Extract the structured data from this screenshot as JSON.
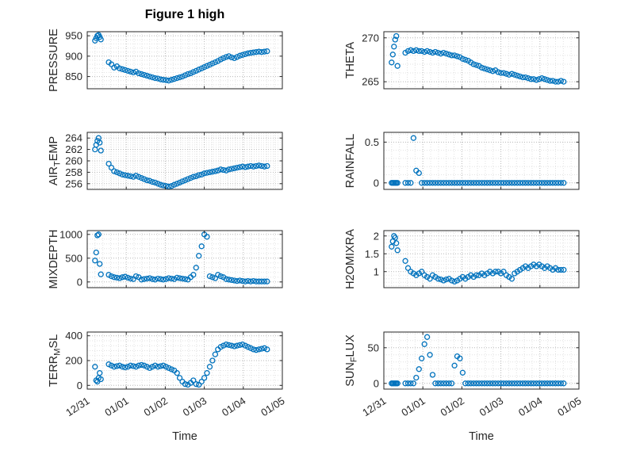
{
  "figure": {
    "title": "Figure 1 high",
    "xlabel": "Time",
    "xtick_labels": [
      "12/31",
      "01/01",
      "01/02",
      "01/03",
      "01/04",
      "01/05"
    ],
    "xticks_days": [
      0,
      1,
      2,
      3,
      4,
      5
    ],
    "xlim": [
      0,
      5
    ],
    "marker_color": "#0072BD",
    "axis_color": "#262626",
    "grid_color": "#b8b8b8",
    "minor_grid_color": "#e2e2e2",
    "x_days": [
      0.2,
      0.23,
      0.26,
      0.29,
      0.32,
      0.35,
      0.55,
      0.62,
      0.69,
      0.76,
      0.83,
      0.9,
      0.97,
      1.04,
      1.11,
      1.18,
      1.25,
      1.32,
      1.39,
      1.46,
      1.53,
      1.6,
      1.67,
      1.74,
      1.81,
      1.88,
      1.95,
      2.02,
      2.09,
      2.16,
      2.23,
      2.3,
      2.37,
      2.44,
      2.51,
      2.58,
      2.65,
      2.72,
      2.79,
      2.86,
      2.93,
      3.0,
      3.07,
      3.14,
      3.21,
      3.28,
      3.35,
      3.42,
      3.49,
      3.56,
      3.63,
      3.7,
      3.77,
      3.84,
      3.91,
      3.98,
      4.05,
      4.12,
      4.19,
      4.26,
      4.33,
      4.4,
      4.47,
      4.54,
      4.61
    ]
  },
  "chart_data": [
    {
      "type": "scatter",
      "name": "PRESSURE",
      "ylabel": "PRESSURE",
      "ylabel_parts": [
        [
          "PRESSURE",
          false
        ]
      ],
      "yticks": [
        850,
        900,
        950
      ],
      "ylim": [
        820,
        960
      ],
      "y": [
        938,
        944,
        950,
        952,
        947,
        941,
        885,
        880,
        872,
        875,
        870,
        868,
        866,
        864,
        862,
        860,
        862,
        858,
        856,
        854,
        852,
        850,
        848,
        846,
        845,
        843,
        842,
        841,
        840,
        842,
        844,
        846,
        848,
        850,
        853,
        856,
        858,
        861,
        864,
        867,
        870,
        873,
        876,
        879,
        882,
        885,
        888,
        892,
        895,
        898,
        900,
        897,
        895,
        898,
        901,
        903,
        905,
        907,
        908,
        909,
        910,
        911,
        910,
        911,
        912
      ]
    },
    {
      "type": "scatter",
      "name": "THETA",
      "ylabel": "THETA",
      "ylabel_parts": [
        [
          "THETA",
          false
        ]
      ],
      "yticks": [
        265,
        270
      ],
      "ylim": [
        264.2,
        270.7
      ],
      "y": [
        267.2,
        268.1,
        269.0,
        269.8,
        270.2,
        266.8,
        268.3,
        268.5,
        268.6,
        268.5,
        268.6,
        268.5,
        268.5,
        268.4,
        268.5,
        268.4,
        268.3,
        268.4,
        268.3,
        268.2,
        268.3,
        268.2,
        268.1,
        268.0,
        268.0,
        267.9,
        267.8,
        267.6,
        267.5,
        267.4,
        267.2,
        267.0,
        266.9,
        266.8,
        266.6,
        266.5,
        266.4,
        266.3,
        266.2,
        266.3,
        266.1,
        266.0,
        266.0,
        265.9,
        265.8,
        265.9,
        265.8,
        265.7,
        265.6,
        265.5,
        265.5,
        265.4,
        265.3,
        265.3,
        265.2,
        265.3,
        265.4,
        265.3,
        265.2,
        265.1,
        265.1,
        265.0,
        265.0,
        265.1,
        265.0
      ]
    },
    {
      "type": "scatter",
      "name": "AIR_TEMP",
      "ylabel": "AIR_TEMP",
      "ylabel_parts": [
        [
          "AIR",
          false
        ],
        [
          "T",
          true
        ],
        [
          "EMP",
          false
        ]
      ],
      "yticks": [
        256,
        258,
        260,
        262,
        264
      ],
      "ylim": [
        255,
        265
      ],
      "y": [
        262.0,
        262.8,
        263.5,
        264.0,
        263.2,
        261.8,
        259.5,
        258.8,
        258.2,
        258.0,
        257.8,
        257.6,
        257.5,
        257.4,
        257.3,
        257.2,
        257.4,
        257.2,
        257.0,
        256.8,
        256.6,
        256.5,
        256.3,
        256.2,
        256.0,
        255.8,
        255.7,
        255.6,
        255.5,
        255.6,
        255.8,
        256.0,
        256.2,
        256.4,
        256.6,
        256.8,
        257.0,
        257.2,
        257.3,
        257.5,
        257.6,
        257.8,
        257.9,
        258.0,
        258.1,
        258.2,
        258.3,
        258.5,
        258.4,
        258.3,
        258.5,
        258.6,
        258.7,
        258.8,
        258.9,
        259.0,
        258.9,
        259.0,
        259.1,
        259.0,
        259.1,
        259.2,
        259.1,
        259.0,
        259.1
      ]
    },
    {
      "type": "scatter",
      "name": "RAINFALL",
      "ylabel": "RAINFALL",
      "ylabel_parts": [
        [
          "RAINFALL",
          false
        ]
      ],
      "yticks": [
        0,
        0.5
      ],
      "ylim": [
        -0.08,
        0.62
      ],
      "y": [
        0,
        0,
        0,
        0,
        0,
        0,
        0,
        0,
        0,
        0.55,
        0.15,
        0.12,
        0,
        0,
        0,
        0,
        0,
        0,
        0,
        0,
        0,
        0,
        0,
        0,
        0,
        0,
        0,
        0,
        0,
        0,
        0,
        0,
        0,
        0,
        0,
        0,
        0,
        0,
        0,
        0,
        0,
        0,
        0,
        0,
        0,
        0,
        0,
        0,
        0,
        0,
        0,
        0,
        0,
        0,
        0,
        0,
        0,
        0,
        0,
        0,
        0,
        0,
        0,
        0,
        0
      ]
    },
    {
      "type": "scatter",
      "name": "MIXDEPTH",
      "ylabel": "MIXDEPTH",
      "ylabel_parts": [
        [
          "MIXDEPTH",
          false
        ]
      ],
      "yticks": [
        0,
        500,
        1000
      ],
      "ylim": [
        -120,
        1080
      ],
      "y": [
        450,
        620,
        980,
        1000,
        380,
        160,
        150,
        120,
        100,
        90,
        80,
        100,
        110,
        90,
        70,
        60,
        120,
        100,
        50,
        60,
        70,
        80,
        60,
        50,
        70,
        60,
        50,
        60,
        80,
        70,
        60,
        90,
        80,
        70,
        60,
        50,
        100,
        150,
        300,
        550,
        750,
        1000,
        950,
        120,
        100,
        80,
        150,
        120,
        100,
        60,
        50,
        40,
        30,
        20,
        30,
        20,
        10,
        20,
        10,
        20,
        10,
        10,
        10,
        10,
        10
      ]
    },
    {
      "type": "scatter",
      "name": "H2OMIXRA",
      "ylabel": "H2OMIXRA",
      "ylabel_parts": [
        [
          "H2OMIXRA",
          false
        ]
      ],
      "yticks": [
        1,
        1.5,
        2
      ],
      "ylim": [
        0.55,
        2.15
      ],
      "y": [
        1.7,
        1.85,
        2.0,
        1.95,
        1.8,
        1.6,
        1.3,
        1.1,
        1.0,
        0.95,
        0.9,
        0.95,
        1.0,
        0.9,
        0.85,
        0.8,
        0.9,
        0.85,
        0.8,
        0.78,
        0.75,
        0.78,
        0.8,
        0.75,
        0.72,
        0.75,
        0.8,
        0.85,
        0.8,
        0.85,
        0.9,
        0.85,
        0.9,
        0.9,
        0.95,
        0.9,
        0.95,
        1.0,
        0.95,
        1.0,
        1.0,
        0.95,
        1.0,
        0.9,
        0.85,
        0.8,
        0.95,
        1.0,
        1.05,
        1.1,
        1.15,
        1.1,
        1.15,
        1.2,
        1.15,
        1.2,
        1.15,
        1.1,
        1.15,
        1.1,
        1.05,
        1.1,
        1.05,
        1.05,
        1.05
      ]
    },
    {
      "type": "scatter",
      "name": "TERR_MSL",
      "ylabel": "TERR_MSL",
      "ylabel_parts": [
        [
          "TERR",
          false
        ],
        [
          "M",
          true
        ],
        [
          "SL",
          false
        ]
      ],
      "yticks": [
        0,
        200,
        400
      ],
      "ylim": [
        -30,
        430
      ],
      "y": [
        150,
        40,
        30,
        60,
        100,
        50,
        170,
        160,
        150,
        155,
        160,
        150,
        145,
        150,
        160,
        155,
        150,
        160,
        165,
        160,
        150,
        140,
        150,
        160,
        150,
        155,
        160,
        150,
        140,
        130,
        120,
        100,
        60,
        30,
        10,
        5,
        20,
        40,
        10,
        5,
        30,
        60,
        100,
        150,
        200,
        250,
        290,
        310,
        320,
        330,
        325,
        320,
        315,
        320,
        325,
        330,
        320,
        310,
        300,
        290,
        285,
        290,
        295,
        300,
        290
      ]
    },
    {
      "type": "scatter",
      "name": "SUN_FLUX",
      "ylabel": "SUN_FLUX",
      "ylabel_parts": [
        [
          "SUN",
          false
        ],
        [
          "F",
          true
        ],
        [
          "LUX",
          false
        ]
      ],
      "yticks": [
        0,
        50
      ],
      "ylim": [
        -8,
        72
      ],
      "y": [
        0,
        0,
        0,
        0,
        0,
        0,
        0,
        0,
        0,
        0,
        8,
        20,
        35,
        55,
        65,
        40,
        12,
        0,
        0,
        0,
        0,
        0,
        0,
        0,
        25,
        38,
        35,
        15,
        0,
        0,
        0,
        0,
        0,
        0,
        0,
        0,
        0,
        0,
        0,
        0,
        0,
        0,
        0,
        0,
        0,
        0,
        0,
        0,
        0,
        0,
        0,
        0,
        0,
        0,
        0,
        0,
        0,
        0,
        0,
        0,
        0,
        0,
        0,
        0,
        0
      ]
    }
  ]
}
